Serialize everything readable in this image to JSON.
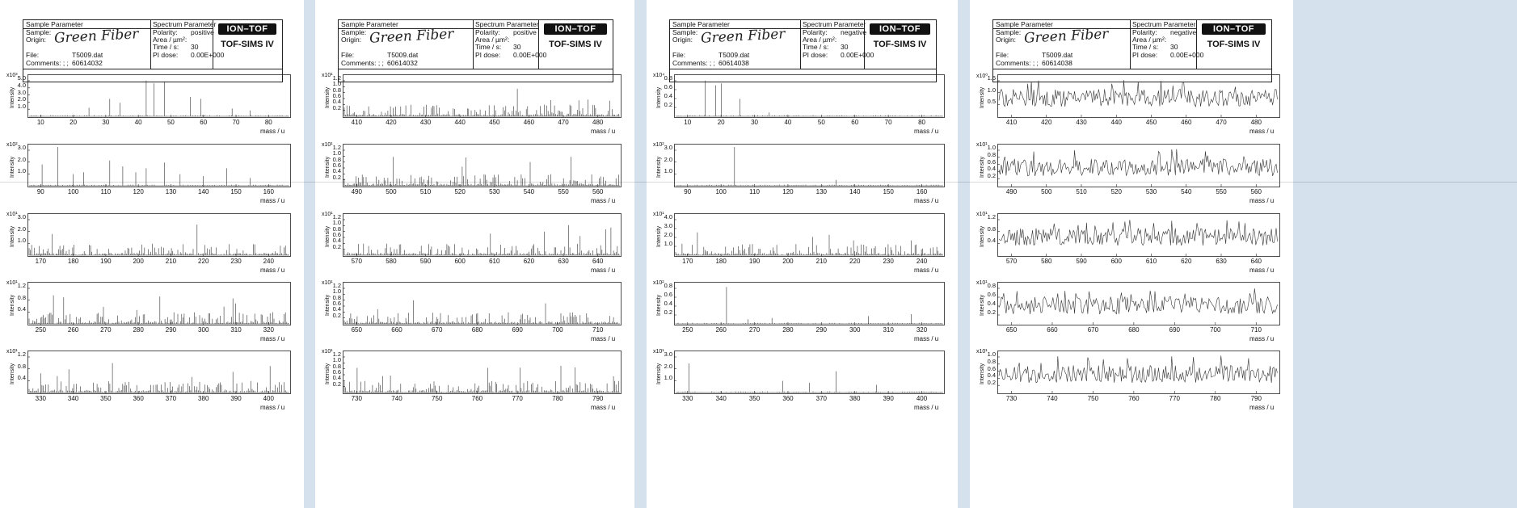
{
  "sheets": [
    {
      "header": {
        "sample_parameter": "Sample Parameter",
        "sample": "Sample:",
        "origin_label": "Origin:",
        "origin_value": "Green Fiber",
        "file_label": "File:",
        "file_value": "T5009.dat",
        "comments_label": "Comments: ; ;",
        "comments_value": "60614032",
        "spectrum_parameter": "Spectrum Parameter",
        "polarity_label": "Polarity:",
        "polarity_value": "positive",
        "area_label": "Area / µm²:",
        "area_value": "",
        "time_label": "Time / s:",
        "time_value": "30",
        "pi_label": "PI dose:",
        "pi_value": "0.00E+000",
        "brand_badge": "ION–TOF",
        "brand_name": "TOF-SIMS IV"
      },
      "panels": [
        {
          "scale": "x10³",
          "ylabel": "Intensity",
          "xunit": "mass / u",
          "xticks": [
            "10",
            "20",
            "30",
            "40",
            "50",
            "60",
            "70",
            "80"
          ],
          "yticks": [
            "5.0",
            "4.0",
            "3.0",
            "2.0",
            "1.0"
          ]
        },
        {
          "scale": "x10²",
          "ylabel": "Intensity",
          "xunit": "mass / u",
          "xticks": [
            "90",
            "100",
            "110",
            "120",
            "130",
            "140",
            "150",
            "160"
          ],
          "yticks": [
            "3.0",
            "2.0",
            "1.0"
          ]
        },
        {
          "scale": "x10¹",
          "ylabel": "Intensity",
          "xunit": "mass / u",
          "xticks": [
            "170",
            "180",
            "190",
            "200",
            "210",
            "220",
            "230",
            "240"
          ],
          "yticks": [
            "3.0",
            "2.0",
            "1.0"
          ]
        },
        {
          "scale": "x10¹",
          "ylabel": "Intensity",
          "xunit": "mass / u",
          "xticks": [
            "250",
            "260",
            "270",
            "280",
            "290",
            "300",
            "310",
            "320"
          ],
          "yticks": [
            "1.2",
            "0.8",
            "0.4"
          ]
        },
        {
          "scale": "x10¹",
          "ylabel": "Intensity",
          "xunit": "mass / u",
          "xticks": [
            "330",
            "340",
            "350",
            "360",
            "370",
            "380",
            "390",
            "400"
          ],
          "yticks": [
            "1.2",
            "0.8",
            "0.4"
          ]
        }
      ]
    },
    {
      "header": {
        "sample_parameter": "Sample Parameter",
        "sample": "Sample:",
        "origin_label": "Origin:",
        "origin_value": "Green Fiber",
        "file_label": "File:",
        "file_value": "T5009.dat",
        "comments_label": "Comments: ; ;",
        "comments_value": "60614032",
        "spectrum_parameter": "Spectrum Parameter",
        "polarity_label": "Polarity:",
        "polarity_value": "positive",
        "area_label": "Area / µm²:",
        "area_value": "",
        "time_label": "Time / s:",
        "time_value": "30",
        "pi_label": "PI dose:",
        "pi_value": "0.00E+000",
        "brand_badge": "ION–TOF",
        "brand_name": "TOF-SIMS IV"
      },
      "panels": [
        {
          "scale": "x10¹",
          "ylabel": "Intensity",
          "xunit": "mass / u",
          "xticks": [
            "410",
            "420",
            "430",
            "440",
            "450",
            "460",
            "470",
            "480"
          ],
          "yticks": [
            "1.2",
            "1.0",
            "0.8",
            "0.6",
            "0.4",
            "0.2"
          ]
        },
        {
          "scale": "x10¹",
          "ylabel": "Intensity",
          "xunit": "mass / u",
          "xticks": [
            "490",
            "500",
            "510",
            "520",
            "530",
            "540",
            "550",
            "560"
          ],
          "yticks": [
            "1.2",
            "1.0",
            "0.8",
            "0.6",
            "0.4",
            "0.2"
          ]
        },
        {
          "scale": "x10¹",
          "ylabel": "Intensity",
          "xunit": "mass / u",
          "xticks": [
            "570",
            "580",
            "590",
            "600",
            "610",
            "620",
            "630",
            "640"
          ],
          "yticks": [
            "1.2",
            "1.0",
            "0.8",
            "0.6",
            "0.4",
            "0.2"
          ]
        },
        {
          "scale": "x10¹",
          "ylabel": "Intensity",
          "xunit": "mass / u",
          "xticks": [
            "650",
            "660",
            "670",
            "680",
            "690",
            "700",
            "710"
          ],
          "yticks": [
            "1.2",
            "1.0",
            "0.8",
            "0.6",
            "0.4",
            "0.2"
          ]
        },
        {
          "scale": "x10¹",
          "ylabel": "Intensity",
          "xunit": "mass / u",
          "xticks": [
            "730",
            "740",
            "750",
            "760",
            "770",
            "780",
            "790"
          ],
          "yticks": [
            "1.2",
            "1.0",
            "0.8",
            "0.6",
            "0.4",
            "0.2"
          ]
        }
      ]
    },
    {
      "header": {
        "sample_parameter": "Sample Parameter",
        "sample": "Sample:",
        "origin_label": "Origin:",
        "origin_value": "Green Fiber",
        "file_label": "File:",
        "file_value": "T5009.dat",
        "comments_label": "Comments: ; ;",
        "comments_value": "60614038",
        "spectrum_parameter": "Spectrum Parameter",
        "polarity_label": "Polarity:",
        "polarity_value": "negative",
        "area_label": "Area / µm²:",
        "area_value": "",
        "time_label": "Time / s:",
        "time_value": "30",
        "pi_label": "PI dose:",
        "pi_value": "0.00E+000",
        "brand_badge": "ION–TOF",
        "brand_name": "TOF-SIMS IV"
      },
      "panels": [
        {
          "scale": "x10⁴",
          "ylabel": "Intensity",
          "xunit": "mass / u",
          "xticks": [
            "10",
            "20",
            "30",
            "40",
            "50",
            "60",
            "70",
            "80"
          ],
          "yticks": [
            "0.8",
            "0.6",
            "0.4",
            "0.2"
          ]
        },
        {
          "scale": "x10²",
          "ylabel": "Intensity",
          "xunit": "mass / u",
          "xticks": [
            "90",
            "100",
            "110",
            "120",
            "130",
            "140",
            "150",
            "160"
          ],
          "yticks": [
            "3.0",
            "2.0",
            "1.0"
          ]
        },
        {
          "scale": "x10¹",
          "ylabel": "Intensity",
          "xunit": "mass / u",
          "xticks": [
            "170",
            "180",
            "190",
            "200",
            "210",
            "220",
            "230",
            "240"
          ],
          "yticks": [
            "4.0",
            "3.0",
            "2.0",
            "1.0"
          ]
        },
        {
          "scale": "x10²",
          "ylabel": "Intensity",
          "xunit": "mass / u",
          "xticks": [
            "250",
            "260",
            "270",
            "280",
            "290",
            "300",
            "310",
            "320"
          ],
          "yticks": [
            "0.8",
            "0.6",
            "0.4",
            "0.2"
          ]
        },
        {
          "scale": "x10¹",
          "ylabel": "Intensity",
          "xunit": "mass / u",
          "xticks": [
            "330",
            "340",
            "350",
            "360",
            "370",
            "380",
            "390",
            "400"
          ],
          "yticks": [
            "3.0",
            "2.0",
            "1.0"
          ]
        }
      ]
    },
    {
      "header": {
        "sample_parameter": "Sample Parameter",
        "sample": "Sample:",
        "origin_label": "Origin:",
        "origin_value": "Green Fiber",
        "file_label": "File:",
        "file_value": "T5009.dat",
        "comments_label": "Comments: ; ;",
        "comments_value": "60614038",
        "spectrum_parameter": "Spectrum Parameter",
        "polarity_label": "Polarity:",
        "polarity_value": "negative",
        "area_label": "Area / µm²:",
        "area_value": "",
        "time_label": "Time / s:",
        "time_value": "30",
        "pi_label": "PI dose:",
        "pi_value": "0.00E+000",
        "brand_badge": "ION–TOF",
        "brand_name": "TOF-SIMS IV"
      },
      "panels": [
        {
          "scale": "x10⁰",
          "ylabel": "Intensity",
          "xunit": "mass / u",
          "xticks": [
            "410",
            "420",
            "430",
            "440",
            "450",
            "460",
            "470",
            "480"
          ],
          "yticks": [
            "1.5",
            "1.0",
            "0.5"
          ]
        },
        {
          "scale": "x10¹",
          "ylabel": "Intensity",
          "xunit": "mass / u",
          "xticks": [
            "490",
            "500",
            "510",
            "520",
            "530",
            "540",
            "550",
            "560"
          ],
          "yticks": [
            "1.0",
            "0.8",
            "0.6",
            "0.4",
            "0.2"
          ]
        },
        {
          "scale": "x10¹",
          "ylabel": "Intensity",
          "xunit": "mass / u",
          "xticks": [
            "570",
            "580",
            "590",
            "600",
            "610",
            "620",
            "630",
            "640"
          ],
          "yticks": [
            "1.2",
            "0.8",
            "0.4"
          ]
        },
        {
          "scale": "x10¹",
          "ylabel": "Intensity",
          "xunit": "mass / u",
          "xticks": [
            "650",
            "660",
            "670",
            "680",
            "690",
            "700",
            "710"
          ],
          "yticks": [
            "0.8",
            "0.6",
            "0.4",
            "0.2"
          ]
        },
        {
          "scale": "x10¹",
          "ylabel": "Intensity",
          "xunit": "mass / u",
          "xticks": [
            "730",
            "740",
            "750",
            "760",
            "770",
            "780",
            "790"
          ],
          "yticks": [
            "1.0",
            "0.8",
            "0.6",
            "0.4",
            "0.2"
          ]
        }
      ]
    }
  ]
}
